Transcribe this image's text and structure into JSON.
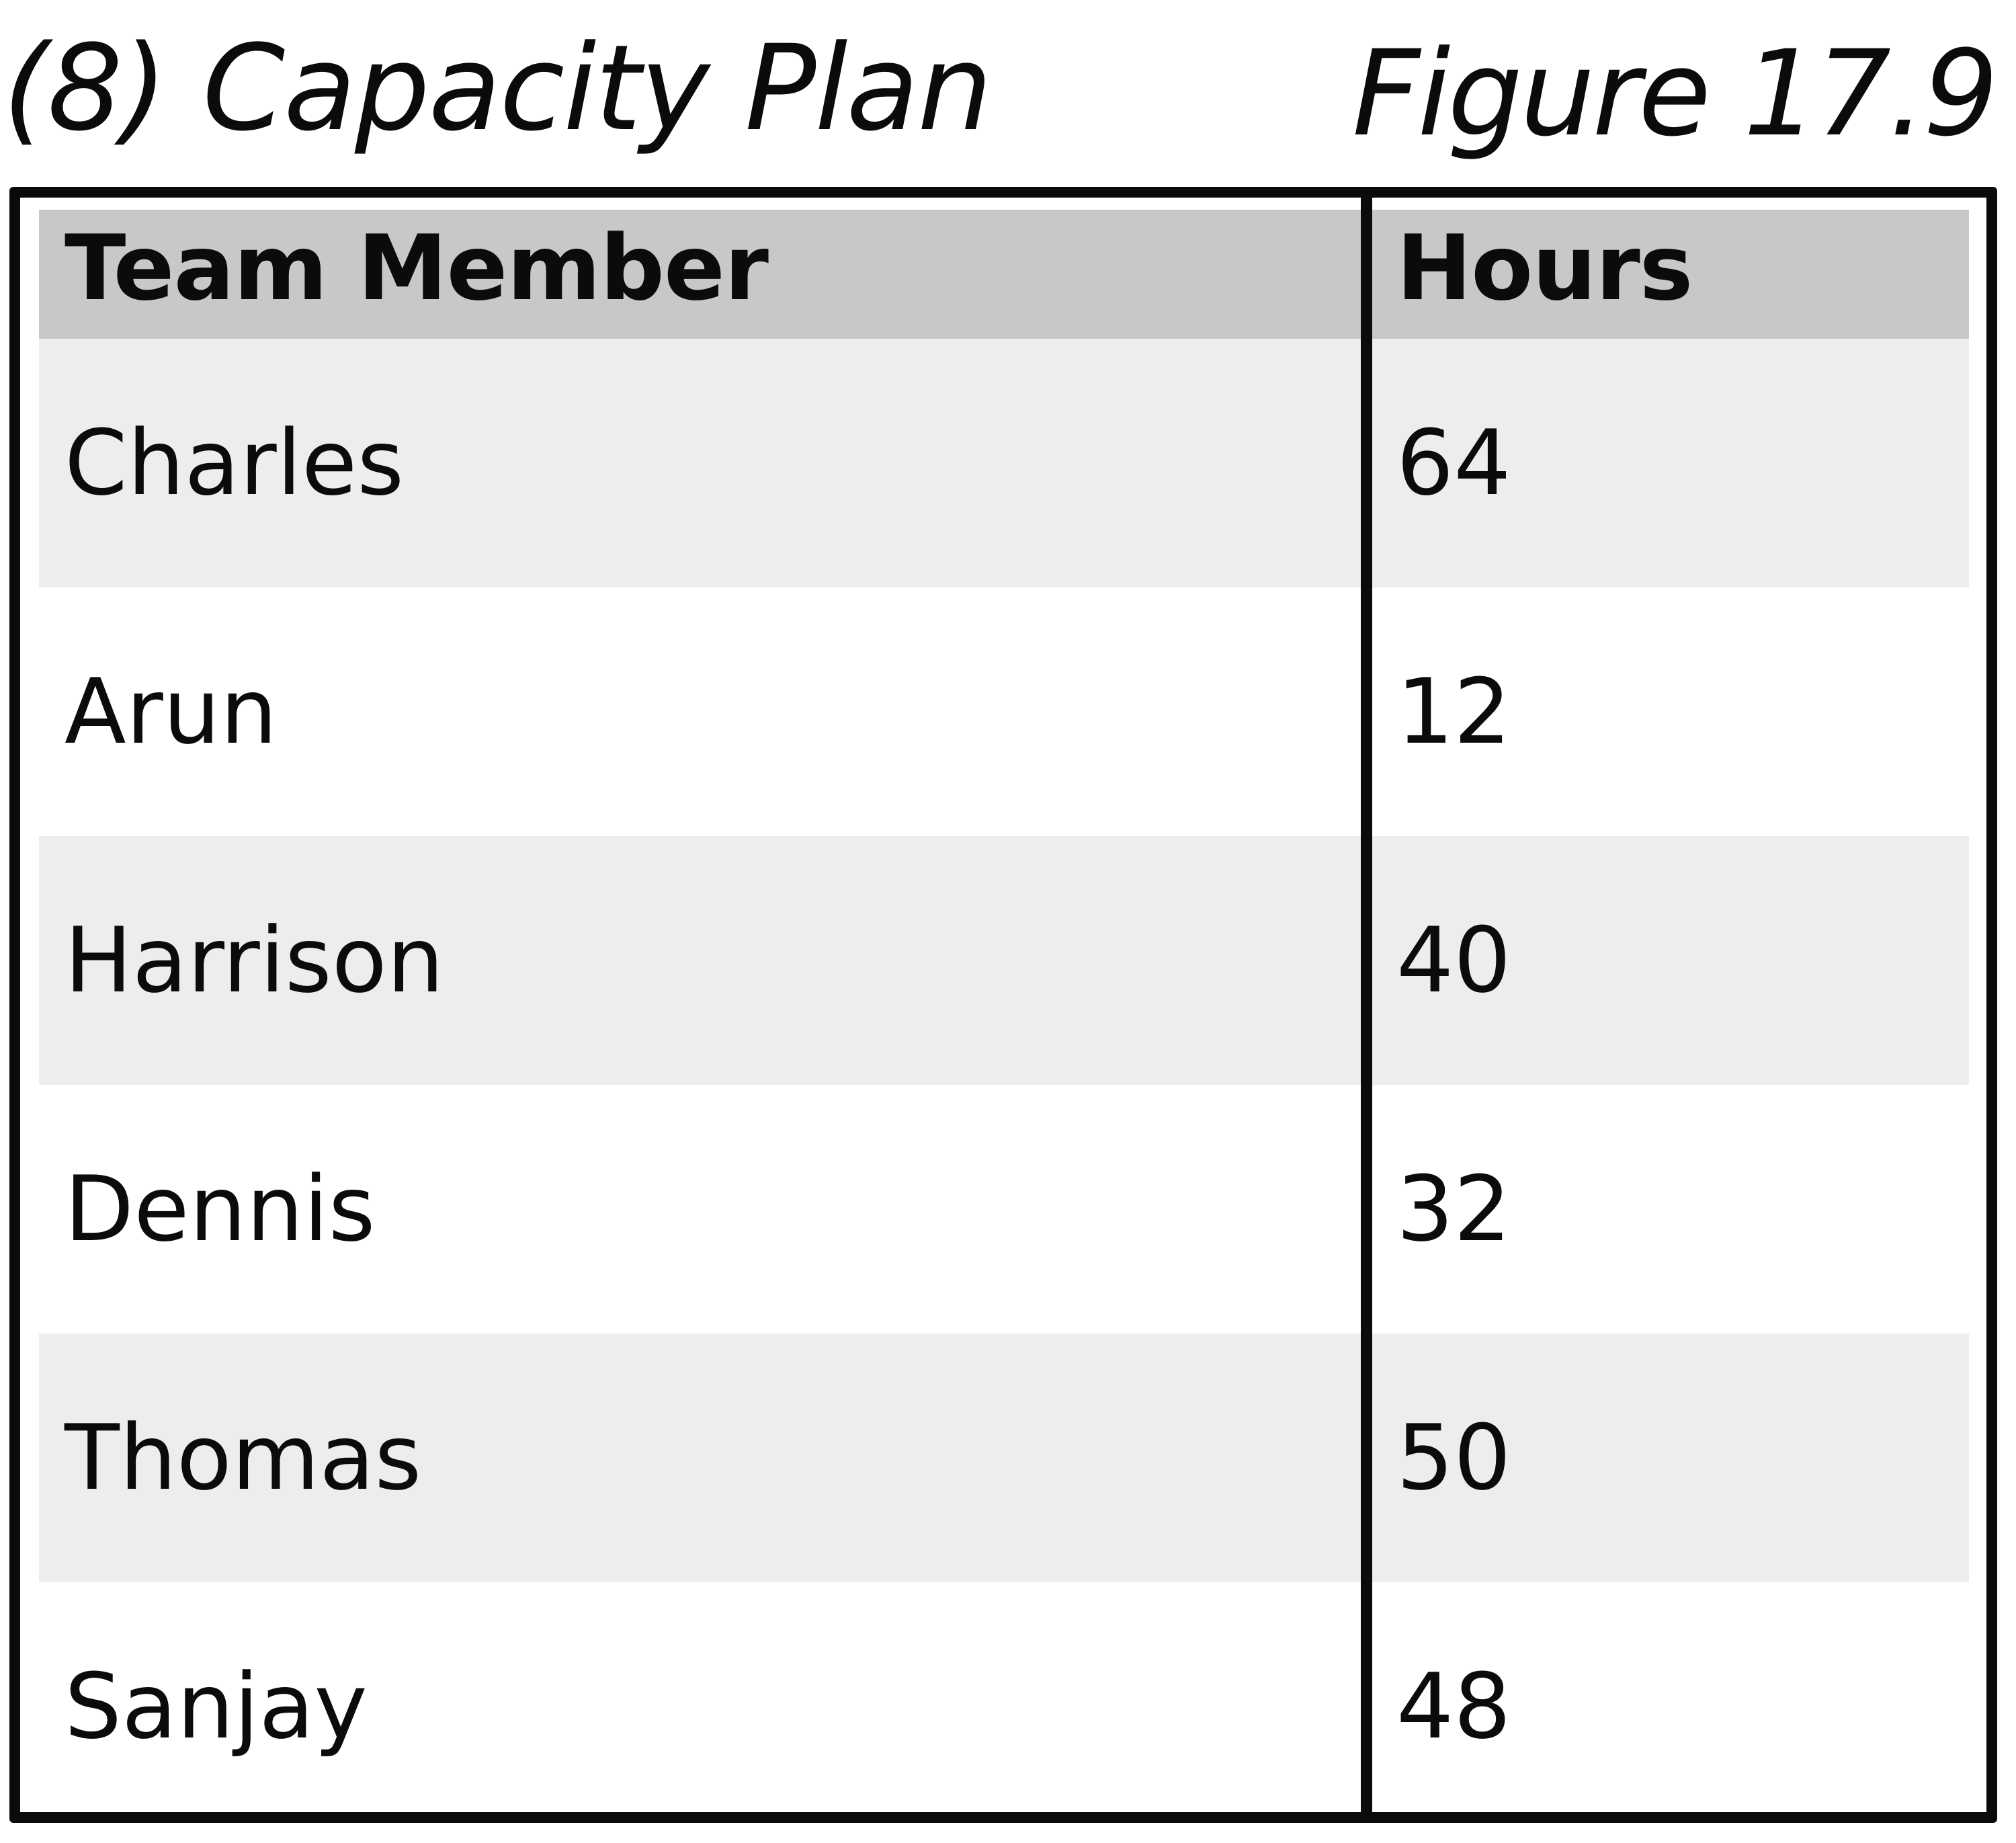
{
  "heading": {
    "title": "(8) Capacity Plan",
    "figure": "Figure 17.9"
  },
  "table": {
    "columns": [
      "Team Member",
      "Hours"
    ],
    "rows": [
      {
        "member": "Charles",
        "hours": "64"
      },
      {
        "member": "Arun",
        "hours": "12"
      },
      {
        "member": "Harrison",
        "hours": "40"
      },
      {
        "member": "Dennis",
        "hours": "32"
      },
      {
        "member": "Thomas",
        "hours": "50"
      },
      {
        "member": "Sanjay",
        "hours": "48"
      }
    ]
  },
  "colors": {
    "border": "#0b0b0b",
    "header_fill": "#c8c8c8",
    "stripe_fill": "#ededed",
    "background": "#ffffff"
  }
}
